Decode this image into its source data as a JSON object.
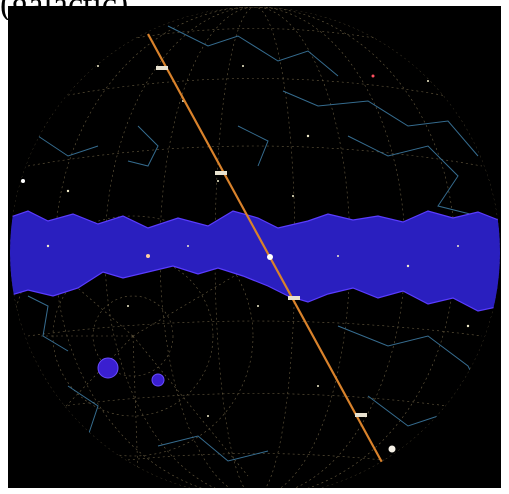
{
  "caption": {
    "text": "(galactic)"
  },
  "colors": {
    "background": "#000000",
    "milky_way": "#2a1fbf",
    "milky_way_edge": "#5a3cff",
    "grid": "#8a7a55",
    "constellation_lines": "#3f7fa8",
    "ecliptic": "#d9822b",
    "ecliptic_marker": "#e8e2d0"
  },
  "icons": {
    "sky": "celestial-sphere-icon",
    "sun": "sun-marker-icon",
    "moon": "moon-marker-icon"
  }
}
